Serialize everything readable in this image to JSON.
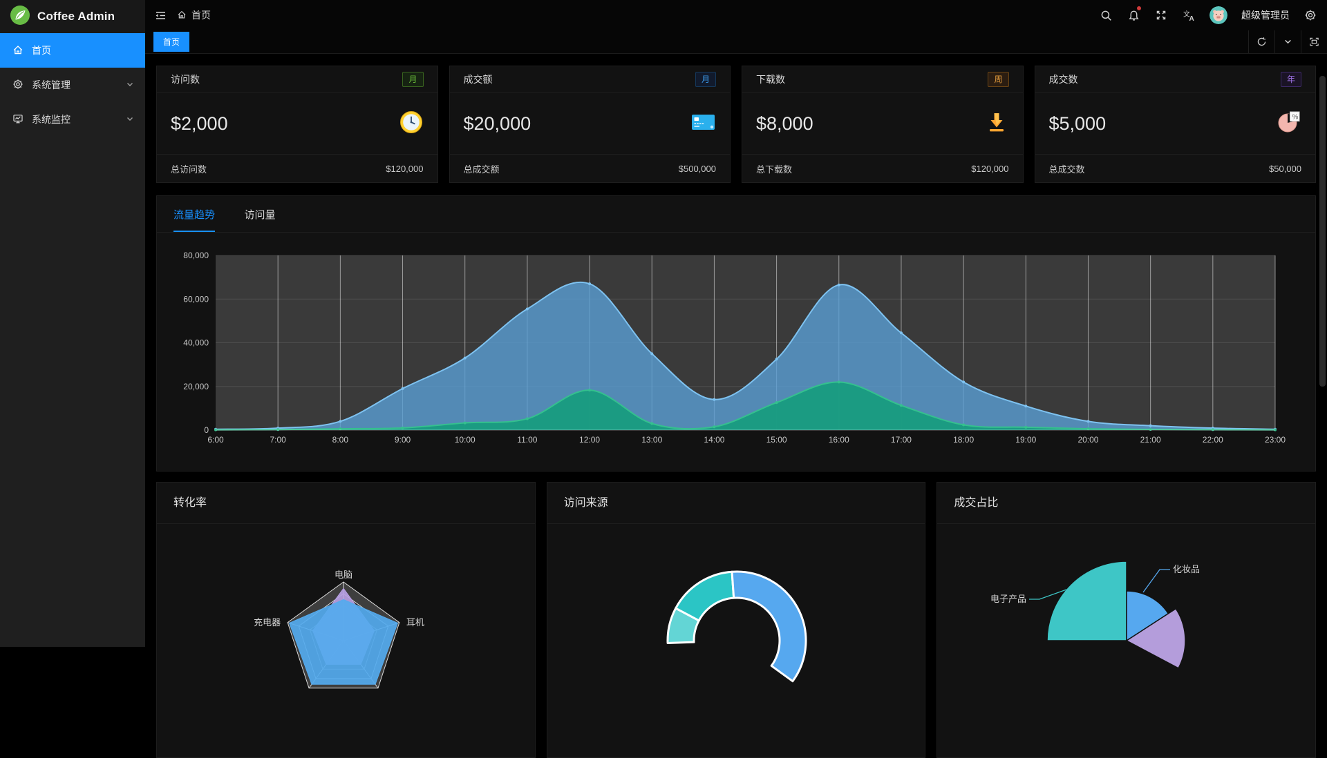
{
  "app": {
    "title": "Coffee Admin"
  },
  "colors": {
    "accent": "#1890ff",
    "sidebar_bg": "#1f1f1f",
    "card_bg": "#121212",
    "plot_bg": "#3a3a3a"
  },
  "sidebar": {
    "items": [
      {
        "label": "首页",
        "icon": "home-icon",
        "active": true,
        "expandable": false
      },
      {
        "label": "系统管理",
        "icon": "gear-icon",
        "active": false,
        "expandable": true
      },
      {
        "label": "系统监控",
        "icon": "monitor-icon",
        "active": false,
        "expandable": true
      }
    ]
  },
  "header": {
    "breadcrumb": "首页",
    "username": "超级管理员",
    "icons": [
      "menu-fold-icon",
      "home-icon",
      "search-icon",
      "bell-icon",
      "fullscreen-icon",
      "translate-icon",
      "gear-icon"
    ]
  },
  "tabs_bar": {
    "tabs": [
      {
        "label": "首页",
        "active": true
      }
    ],
    "controls": [
      "refresh-icon",
      "chevron-down-icon",
      "maximize-icon"
    ]
  },
  "stat_cards": [
    {
      "title": "访问数",
      "badge": "月",
      "badge_color": "green",
      "value": "$2,000",
      "icon": "clock-icon",
      "footer_label": "总访问数",
      "footer_value": "$120,000"
    },
    {
      "title": "成交额",
      "badge": "月",
      "badge_color": "blue",
      "value": "$20,000",
      "icon": "credit-card-icon",
      "footer_label": "总成交额",
      "footer_value": "$500,000"
    },
    {
      "title": "下载数",
      "badge": "周",
      "badge_color": "orange",
      "value": "$8,000",
      "icon": "download-icon",
      "footer_label": "总下载数",
      "footer_value": "$120,000"
    },
    {
      "title": "成交数",
      "badge": "年",
      "badge_color": "purple",
      "value": "$5,000",
      "icon": "pie-percent-icon",
      "footer_label": "总成交数",
      "footer_value": "$50,000"
    }
  ],
  "trend_card": {
    "tabs": [
      {
        "label": "流量趋势",
        "active": true
      },
      {
        "label": "访问量",
        "active": false
      }
    ]
  },
  "bottom_cards": [
    {
      "title": "转化率"
    },
    {
      "title": "访问来源"
    },
    {
      "title": "成交占比"
    }
  ],
  "chart_data": [
    {
      "id": "traffic-trend",
      "type": "area",
      "title": "流量趋势",
      "x": [
        "6:00",
        "7:00",
        "8:00",
        "9:00",
        "10:00",
        "11:00",
        "12:00",
        "13:00",
        "14:00",
        "15:00",
        "16:00",
        "17:00",
        "18:00",
        "19:00",
        "20:00",
        "21:00",
        "22:00",
        "23:00"
      ],
      "ylim": [
        0,
        80000
      ],
      "yticks": [
        {
          "value": 0,
          "label": "0"
        },
        {
          "value": 20000,
          "label": "20,000"
        },
        {
          "value": 40000,
          "label": "40,000"
        },
        {
          "value": 60000,
          "label": "60,000"
        },
        {
          "value": 80000,
          "label": "80,000"
        }
      ],
      "grid": {
        "vertical": true,
        "horizontal": true
      },
      "legend": "none",
      "series": [
        {
          "name": "blue",
          "color": "#7ec2f0",
          "fill": "#5a9fd4",
          "fill_opacity": 0.8,
          "values": [
            400,
            900,
            4000,
            19000,
            33000,
            55500,
            67000,
            35000,
            14000,
            32500,
            66500,
            44500,
            22000,
            11000,
            4000,
            2000,
            900,
            400
          ]
        },
        {
          "name": "green",
          "color": "#35c08e",
          "fill": "#189c80",
          "fill_opacity": 0.95,
          "values": [
            100,
            250,
            600,
            1000,
            3300,
            5200,
            18300,
            3000,
            1500,
            12600,
            22000,
            11300,
            2400,
            1300,
            600,
            300,
            200,
            100
          ]
        }
      ]
    },
    {
      "id": "conversion-radar",
      "type": "radar",
      "title": "转化率",
      "indicators": [
        "电脑",
        "耳机",
        "",
        "",
        "充电器"
      ],
      "max": 100,
      "series": [
        {
          "name": "purple",
          "color": "#b79fe3",
          "values": [
            89,
            55,
            50,
            50,
            55
          ]
        },
        {
          "name": "blue",
          "color": "#54aaee",
          "values": [
            70,
            97,
            92,
            92,
            97
          ]
        }
      ]
    },
    {
      "id": "visit-source-doughnut",
      "type": "pie",
      "title": "访问来源",
      "ring": true,
      "segments": [
        {
          "label": "",
          "color": "#63d5d5",
          "start_deg": -92,
          "end_deg": -62
        },
        {
          "label": "",
          "color": "#2bc5c5",
          "start_deg": -62,
          "end_deg": -4
        },
        {
          "label": "",
          "color": "#56a8ef",
          "start_deg": -4,
          "end_deg": 126
        }
      ]
    },
    {
      "id": "deal-share-pie",
      "type": "pie",
      "title": "成交占比",
      "rose": true,
      "slices": [
        {
          "label": "电子产品",
          "color": "#3ec6c6",
          "start_deg": -90,
          "end_deg": 0,
          "radius": 115
        },
        {
          "label": "化妆品",
          "color": "#56a8ef",
          "start_deg": 0,
          "end_deg": 57,
          "radius": 72
        },
        {
          "label": "",
          "color": "#b49ddb",
          "start_deg": 57,
          "end_deg": 118,
          "radius": 85
        }
      ]
    }
  ]
}
